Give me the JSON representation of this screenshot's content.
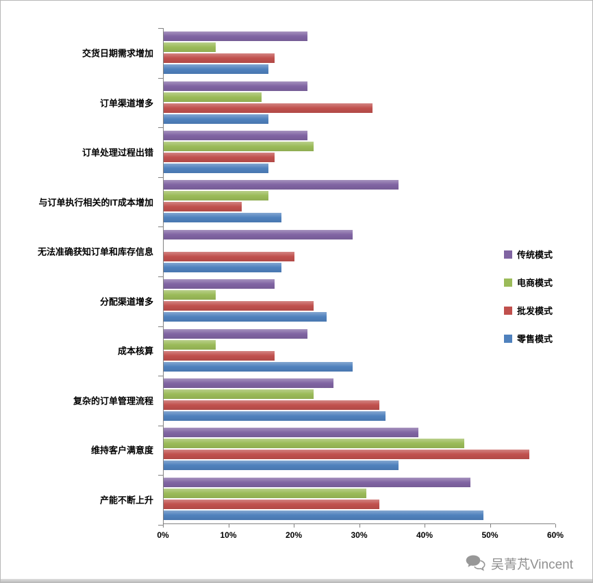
{
  "chart_data": {
    "type": "bar",
    "orientation": "horizontal",
    "title": "",
    "xlabel": "",
    "ylabel": "",
    "xlim": [
      0,
      60
    ],
    "x_tick_labels": [
      "0%",
      "10%",
      "20%",
      "30%",
      "40%",
      "50%",
      "60%"
    ],
    "grid": false,
    "legend_position": "right",
    "categories": [
      "交货日期需求增加",
      "订单渠道增多",
      "订单处理过程出错",
      "与订单执行相关的IT成本增加",
      "无法准确获知订单和库存信息",
      "分配渠道增多",
      "成本核算",
      "复杂的订单管理流程",
      "维持客户满意度",
      "产能不断上升"
    ],
    "series": [
      {
        "name": "传统模式",
        "color": "#8064A2",
        "values": [
          22,
          22,
          22,
          36,
          29,
          17,
          22,
          26,
          39,
          47
        ]
      },
      {
        "name": "电商模式",
        "color": "#9BBB59",
        "values": [
          8,
          15,
          23,
          16,
          0,
          8,
          8,
          23,
          46,
          31
        ]
      },
      {
        "name": "批发模式",
        "color": "#C0504D",
        "values": [
          17,
          32,
          17,
          12,
          20,
          23,
          17,
          33,
          56,
          33
        ]
      },
      {
        "name": "零售模式",
        "color": "#4F81BD",
        "values": [
          16,
          16,
          16,
          18,
          18,
          25,
          29,
          34,
          36,
          49
        ]
      }
    ]
  },
  "watermark": {
    "text": "吴菁芃Vincent"
  },
  "axis": {
    "line_color": "#808080"
  }
}
